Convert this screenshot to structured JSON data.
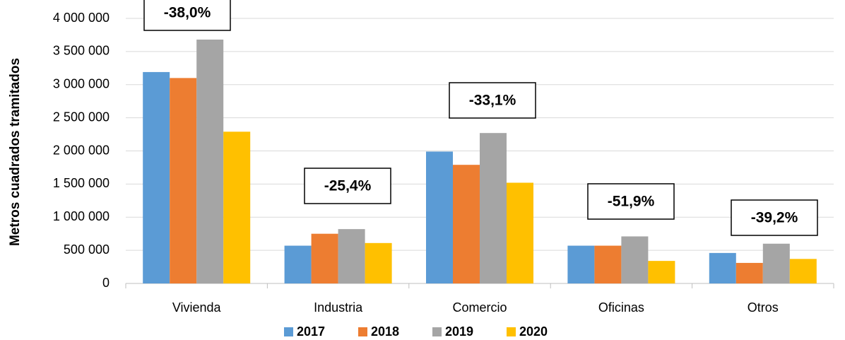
{
  "chart_data": {
    "type": "bar",
    "y_label": "Metros cuadrados tramitados",
    "categories": [
      "Vivienda",
      "Industria",
      "Comercio",
      "Oficinas",
      "Otros"
    ],
    "series": [
      {
        "name": "2017",
        "color": "#5b9bd5",
        "values": [
          3190000,
          570000,
          1990000,
          570000,
          460000
        ]
      },
      {
        "name": "2018",
        "color": "#ed7d31",
        "values": [
          3100000,
          750000,
          1790000,
          570000,
          310000
        ]
      },
      {
        "name": "2019",
        "color": "#a5a5a5",
        "values": [
          3680000,
          820000,
          2270000,
          710000,
          600000
        ]
      },
      {
        "name": "2020",
        "color": "#ffc000",
        "values": [
          2290000,
          610000,
          1520000,
          340000,
          370000
        ]
      }
    ],
    "annotations": [
      "-38,0%",
      "-25,4%",
      "-33,1%",
      "-51,9%",
      "-39,2%"
    ],
    "ylim": [
      0,
      4000000
    ],
    "yticks": [
      0,
      {
        "value": 500000,
        "label": "500 000"
      },
      {
        "value": 1000000,
        "label": "1 000 000"
      },
      {
        "value": 1500000,
        "label": "1 500 000"
      },
      {
        "value": 2000000,
        "label": "2 000 000"
      },
      {
        "value": 2500000,
        "label": "2 500 000"
      },
      {
        "value": 3000000,
        "label": "3 000 000"
      },
      {
        "value": 3500000,
        "label": "3 500 000"
      },
      {
        "value": 4000000,
        "label": "4 000 000"
      }
    ],
    "grid": true,
    "legend": "bottom"
  }
}
